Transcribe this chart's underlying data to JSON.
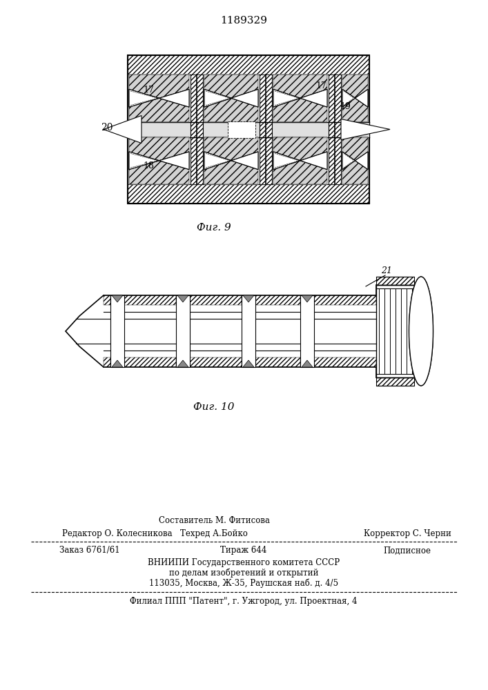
{
  "bg_color": "#ffffff",
  "patent_number": "1189329",
  "fig9_caption": "Фиг. 9",
  "fig10_caption": "Фиг. 10",
  "footer": {
    "row1_left": "Редактор О. Колесникова",
    "row1_center_top": "Составитель М. Фитисова",
    "row1_center_bot": "Техред А.Бойко",
    "row1_right": "Корректор С. Черни",
    "row2_left": "Заказ 6761/61",
    "row2_center": "Тираж 644",
    "row2_right": "Подписное",
    "row3_1": "ВНИИПИ Государственного комитета СССР",
    "row3_2": "по делам изобретений и открытий",
    "row3_3": "113035, Москва, Ж-35, Раушская наб. д. 4/5",
    "row4": "Филиал ППП \"Патент\", г. Ужгород, ул. Проектная, 4"
  },
  "line_color": "#000000",
  "line_width": 1.0
}
